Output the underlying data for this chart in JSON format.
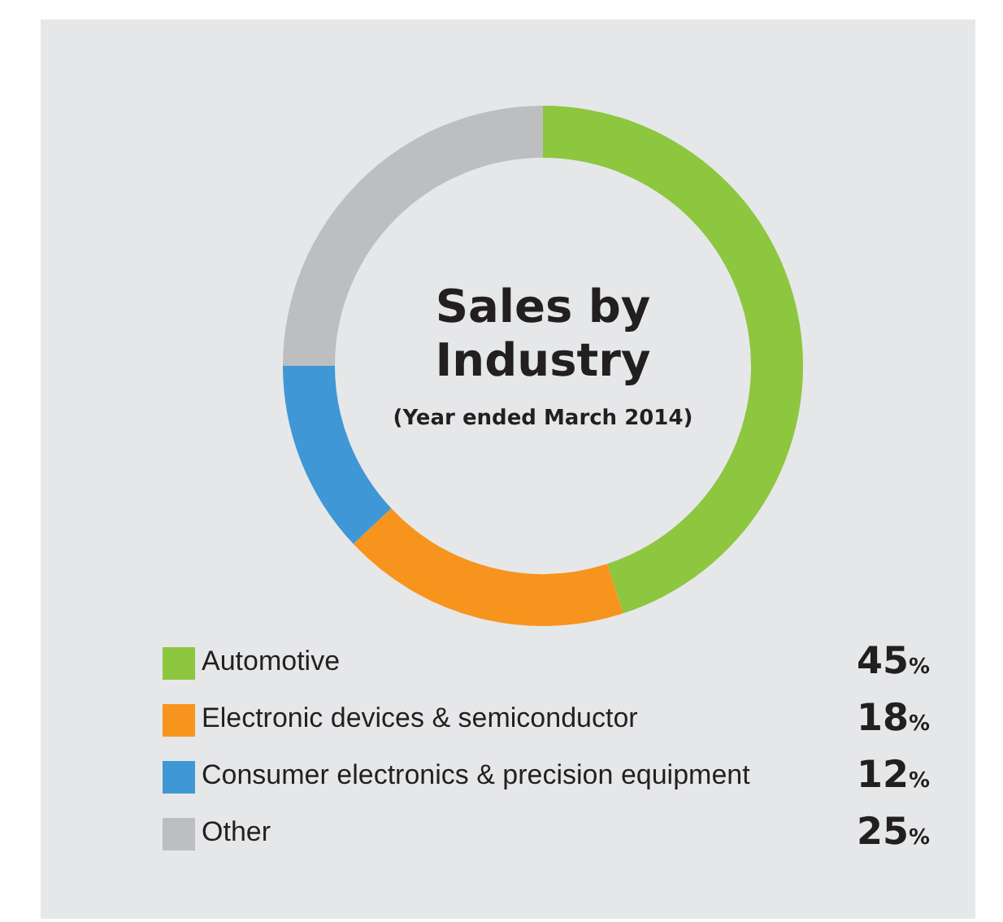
{
  "chart_data": {
    "type": "donut",
    "title": "Sales by Industry",
    "subtitle": "(Year ended March 2014)",
    "categories": [
      "Automotive",
      "Electronic devices & semiconductor",
      "Consumer electronics & precision equipment",
      "Other"
    ],
    "values": [
      45,
      18,
      12,
      25
    ],
    "colors": [
      "#8dc63f",
      "#f7941d",
      "#3f97d6",
      "#bcbec0"
    ],
    "value_labels": [
      "45%",
      "18%",
      "12%",
      "25%"
    ],
    "legend": "bottom"
  }
}
